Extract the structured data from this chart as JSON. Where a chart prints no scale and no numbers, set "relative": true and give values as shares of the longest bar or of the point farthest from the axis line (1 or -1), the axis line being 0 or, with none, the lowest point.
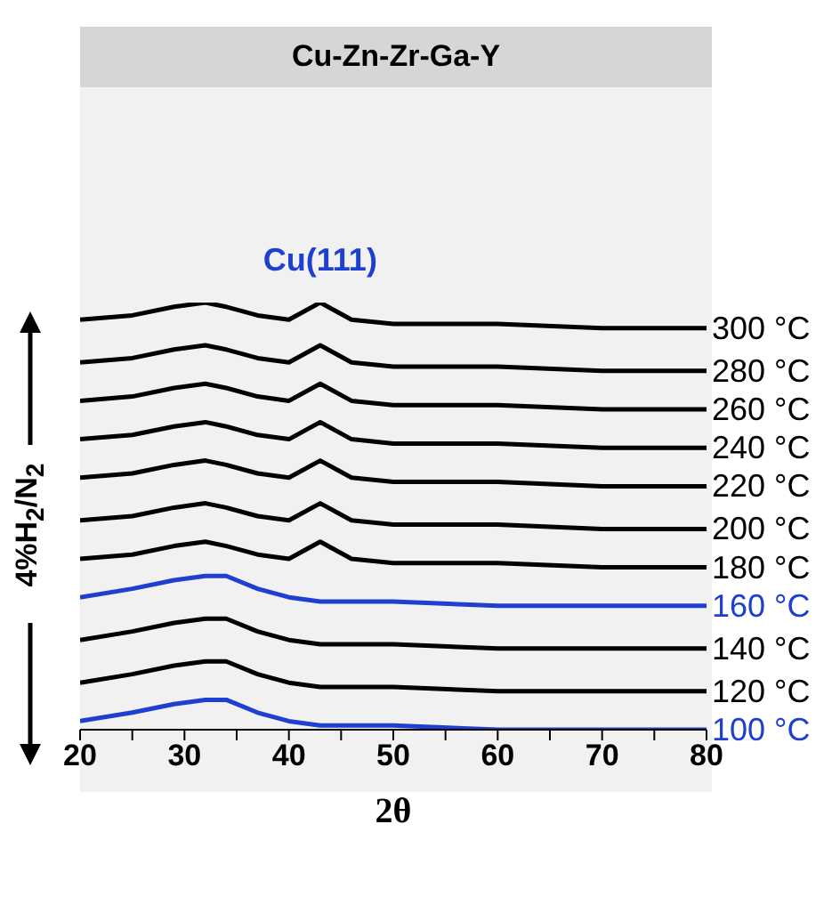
{
  "chart_data": {
    "type": "line",
    "title": "Cu-Zn-Zr-Ga-Y",
    "xlabel": "2θ",
    "ylabel": "4%H$_{2}$/N$_{2}$",
    "relative": true,
    "x": [
      20,
      25,
      29,
      32,
      34,
      37,
      40,
      43,
      46,
      50,
      60,
      70,
      80
    ],
    "xlim": [
      20,
      80
    ],
    "xticks": [
      20,
      {
        "value": 25,
        "label": null
      },
      30,
      {
        "value": 35,
        "label": null
      },
      40,
      {
        "value": 45,
        "label": null
      },
      50,
      {
        "value": 55,
        "label": null
      },
      60,
      {
        "value": 65,
        "label": null
      },
      70,
      {
        "value": 75,
        "label": null
      },
      80
    ],
    "annotations": [
      {
        "text": "Cu(111)",
        "x": 43,
        "y": 1
      }
    ],
    "series": [
      {
        "name": "300 °C",
        "color": "#000000",
        "values": [
          0.96,
          0.97,
          0.99,
          1,
          0.99,
          0.97,
          0.96,
          1,
          0.96,
          0.95,
          0.95,
          0.94,
          0.94
        ]
      },
      {
        "name": "280 °C",
        "color": "#000000",
        "values": [
          0.86,
          0.87,
          0.89,
          0.9,
          0.89,
          0.87,
          0.86,
          0.9,
          0.86,
          0.85,
          0.85,
          0.84,
          0.84
        ]
      },
      {
        "name": "260 °C",
        "color": "#000000",
        "values": [
          0.77,
          0.78,
          0.8,
          0.81,
          0.8,
          0.78,
          0.77,
          0.81,
          0.77,
          0.76,
          0.76,
          0.75,
          0.75
        ]
      },
      {
        "name": "240 °C",
        "color": "#000000",
        "values": [
          0.68,
          0.69,
          0.71,
          0.72,
          0.71,
          0.69,
          0.68,
          0.72,
          0.68,
          0.67,
          0.67,
          0.66,
          0.66
        ]
      },
      {
        "name": "220 °C",
        "color": "#000000",
        "values": [
          0.59,
          0.6,
          0.62,
          0.63,
          0.62,
          0.6,
          0.59,
          0.63,
          0.59,
          0.58,
          0.58,
          0.57,
          0.57
        ]
      },
      {
        "name": "200 °C",
        "color": "#000000",
        "values": [
          0.49,
          0.5,
          0.52,
          0.53,
          0.52,
          0.5,
          0.49,
          0.53,
          0.49,
          0.48,
          0.48,
          0.47,
          0.47
        ]
      },
      {
        "name": "180 °C",
        "color": "#000000",
        "values": [
          0.4,
          0.41,
          0.43,
          0.44,
          0.43,
          0.41,
          0.4,
          0.44,
          0.4,
          0.39,
          0.39,
          0.38,
          0.38
        ]
      },
      {
        "name": "160 °C",
        "color": "#1f3fd0",
        "values": [
          0.31,
          0.33,
          0.35,
          0.36,
          0.36,
          0.33,
          0.31,
          0.3,
          0.3,
          0.3,
          0.29,
          0.29,
          0.29
        ]
      },
      {
        "name": "140 °C",
        "color": "#000000",
        "values": [
          0.21,
          0.23,
          0.25,
          0.26,
          0.26,
          0.23,
          0.21,
          0.2,
          0.2,
          0.2,
          0.19,
          0.19,
          0.19
        ]
      },
      {
        "name": "120 °C",
        "color": "#000000",
        "values": [
          0.11,
          0.13,
          0.15,
          0.16,
          0.16,
          0.13,
          0.11,
          0.1,
          0.1,
          0.1,
          0.09,
          0.09,
          0.09
        ]
      },
      {
        "name": "100 °C",
        "color": "#1f3fd0",
        "values": [
          0.02,
          0.04,
          0.06,
          0.07,
          0.07,
          0.04,
          0.02,
          0.01,
          0.01,
          0.01,
          0,
          0,
          0
        ]
      }
    ]
  }
}
